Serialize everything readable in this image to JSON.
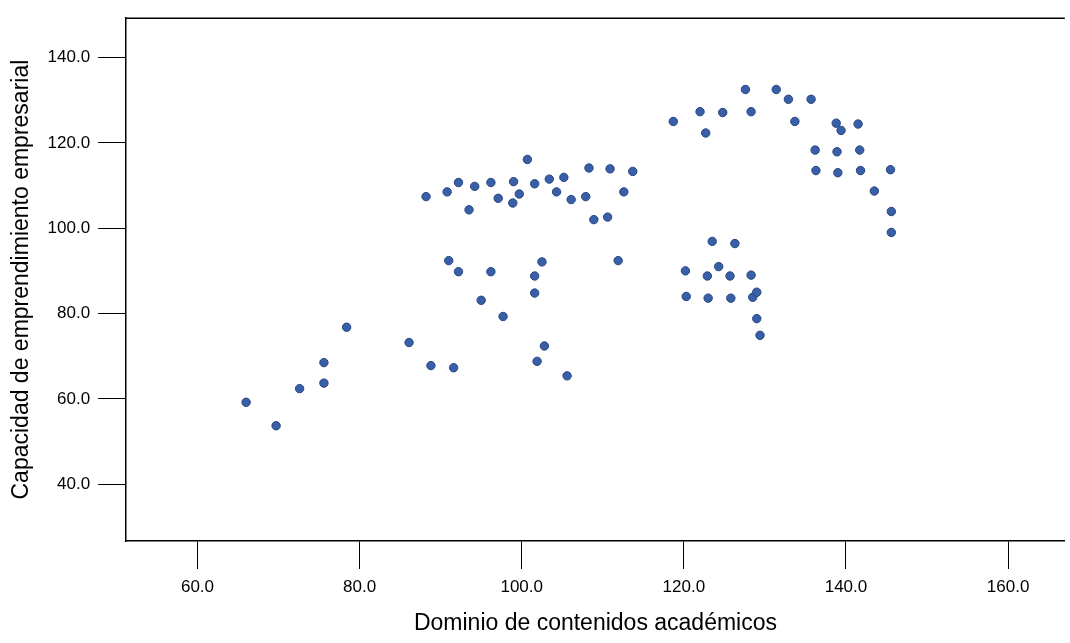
{
  "chart_data": {
    "type": "scatter",
    "xlabel": "Dominio de contenidos académicos",
    "ylabel": "Capacidad de emprendimiento empresarial",
    "marker": "circle",
    "grid": false,
    "legend": false,
    "xlim": [
      51.2,
      167
    ],
    "ylim": [
      26.7,
      149.2
    ],
    "xticks": [
      {
        "value": 60,
        "label": "60.0"
      },
      {
        "value": 80,
        "label": "80.0"
      },
      {
        "value": 100,
        "label": "100.0"
      },
      {
        "value": 120,
        "label": "120.0"
      },
      {
        "value": 140,
        "label": "140.0"
      },
      {
        "value": 160,
        "label": "160.0"
      }
    ],
    "yticks": [
      {
        "value": 40,
        "label": "40.0"
      },
      {
        "value": 60,
        "label": "60.0"
      },
      {
        "value": 80,
        "label": "80.0"
      },
      {
        "value": 100,
        "label": "100.0"
      },
      {
        "value": 120,
        "label": "120.0"
      },
      {
        "value": 140,
        "label": "140.0"
      }
    ],
    "series": [
      {
        "color": "#3a5fa8",
        "x": [
          66.0,
          69.7,
          72.6,
          75.6,
          75.6,
          78.4,
          86.1,
          88.8,
          91.6,
          101.9,
          105.6,
          102.8,
          91.0,
          92.2,
          96.2,
          95.0,
          97.7,
          101.6,
          102.5,
          101.6,
          111.9,
          88.2,
          90.8,
          92.2,
          94.2,
          96.2,
          93.5,
          97.1,
          98.9,
          99.0,
          99.7,
          100.7,
          101.6,
          103.4,
          104.3,
          105.2,
          106.1,
          107.9,
          108.3,
          108.9,
          110.6,
          110.9,
          112.6,
          113.7,
          118.7,
          122.0,
          122.7,
          124.8,
          127.6,
          128.3,
          131.4,
          132.9,
          135.7,
          133.7,
          138.8,
          139.4,
          141.5,
          136.2,
          138.9,
          141.7,
          136.3,
          139.0,
          141.8,
          145.5,
          143.5,
          145.6,
          145.6,
          123.5,
          126.3,
          120.2,
          124.3,
          122.9,
          125.7,
          128.3,
          120.3,
          123.0,
          125.8,
          128.5,
          129.0,
          129.0,
          129.4
        ],
        "values": [
          59.2,
          53.7,
          62.4,
          68.5,
          63.7,
          76.8,
          73.2,
          67.8,
          67.3,
          68.8,
          65.4,
          72.4,
          92.4,
          89.8,
          89.8,
          83.1,
          79.3,
          88.8,
          92.1,
          84.8,
          92.4,
          107.4,
          108.5,
          110.7,
          109.8,
          110.7,
          104.3,
          107.0,
          105.9,
          110.9,
          108.0,
          116.1,
          110.4,
          111.5,
          108.5,
          111.9,
          106.7,
          107.4,
          114.1,
          102.0,
          102.6,
          113.9,
          108.5,
          113.3,
          125.0,
          127.3,
          122.3,
          127.1,
          132.5,
          127.3,
          132.5,
          130.2,
          130.2,
          125.0,
          124.6,
          122.9,
          124.4,
          118.3,
          117.9,
          118.3,
          113.5,
          113.0,
          113.5,
          113.7,
          108.7,
          103.9,
          99.0,
          96.9,
          96.4,
          90.0,
          91.0,
          88.8,
          88.8,
          89.0,
          84.0,
          83.6,
          83.6,
          83.8,
          85.0,
          78.8,
          74.9
        ]
      }
    ]
  }
}
